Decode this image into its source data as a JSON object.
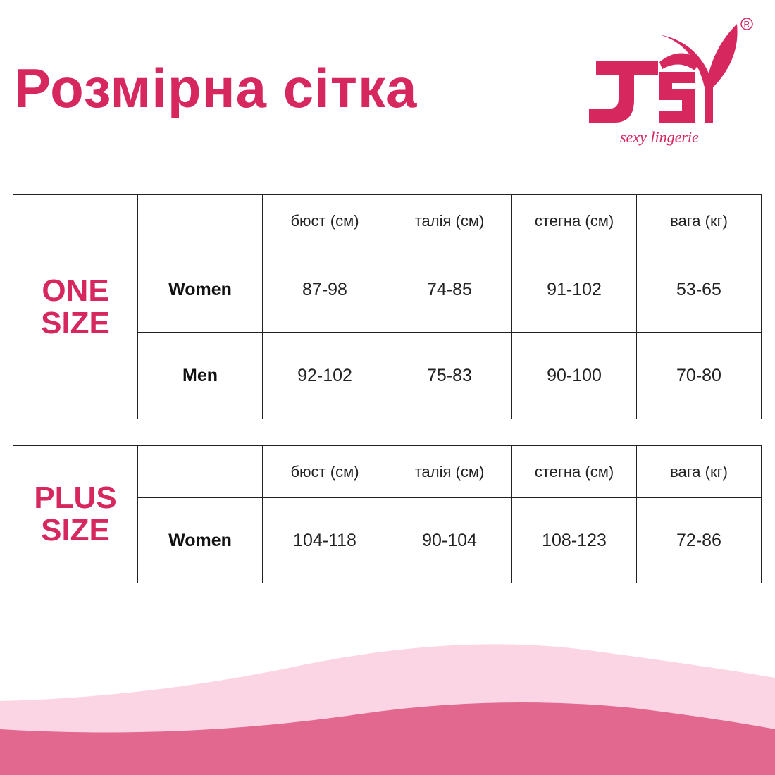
{
  "title": "Розмірна сітка",
  "brand": {
    "logo_text": "JSY",
    "tagline": "sexy lingerie",
    "registered": "®",
    "color": "#d6275f"
  },
  "columns": [
    "бюст (см)",
    "талія (см)",
    "стегна (см)",
    "вага (кг)"
  ],
  "tables": [
    {
      "size_label": [
        "ONE",
        "SIZE"
      ],
      "rows": [
        {
          "label": "Women",
          "values": [
            "87-98",
            "74-85",
            "91-102",
            "53-65"
          ]
        },
        {
          "label": "Men",
          "values": [
            "92-102",
            "75-83",
            "90-100",
            "70-80"
          ]
        }
      ]
    },
    {
      "size_label": [
        "PLUS",
        "SIZE"
      ],
      "rows": [
        {
          "label": "Women",
          "values": [
            "104-118",
            "90-104",
            "108-123",
            "72-86"
          ]
        }
      ]
    }
  ],
  "colors": {
    "accent": "#d6275f",
    "wave_light": "#fcd5e4",
    "wave_dark": "#e2688f"
  }
}
